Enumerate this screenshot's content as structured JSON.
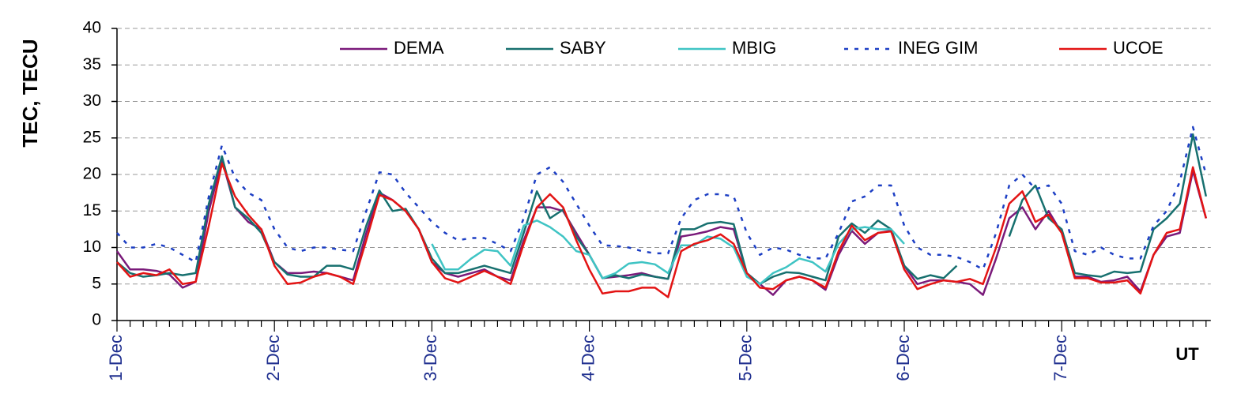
{
  "chart_data": {
    "type": "line",
    "y_label": "TEC, TECU",
    "x_label": "UT",
    "categories": [
      "1-Dec",
      null,
      null,
      null,
      null,
      null,
      null,
      null,
      null,
      null,
      null,
      null,
      "2-Dec",
      null,
      null,
      null,
      null,
      null,
      null,
      null,
      null,
      null,
      null,
      null,
      "3-Dec",
      null,
      null,
      null,
      null,
      null,
      null,
      null,
      null,
      null,
      null,
      null,
      "4-Dec",
      null,
      null,
      null,
      null,
      null,
      null,
      null,
      null,
      null,
      null,
      null,
      "5-Dec",
      null,
      null,
      null,
      null,
      null,
      null,
      null,
      null,
      null,
      null,
      null,
      "6-Dec",
      null,
      null,
      null,
      null,
      null,
      null,
      null,
      null,
      null,
      null,
      null,
      "7-Dec",
      null,
      null,
      null,
      null,
      null,
      null,
      null,
      null,
      null,
      null,
      null
    ],
    "series": [
      {
        "name": "DEMA",
        "color": "#7a1a7a",
        "style": "solid",
        "values": [
          9.5,
          7,
          7,
          6.8,
          6.3,
          4.5,
          5.3,
          15,
          22,
          15.5,
          13.5,
          12.5,
          8,
          6.5,
          6.5,
          6.7,
          6.5,
          6,
          5.5,
          12,
          17.5,
          16.5,
          15,
          12.5,
          8,
          6.5,
          6,
          6.5,
          7,
          6,
          5.5,
          11,
          15.5,
          15.5,
          15,
          12,
          9,
          5.8,
          6,
          6.2,
          6.5,
          6,
          5.7,
          11.5,
          11.8,
          12.2,
          12.8,
          12.5,
          6.5,
          5,
          3.5,
          5.5,
          6,
          5.5,
          4.2,
          9,
          12.3,
          10.5,
          12,
          12.3,
          7.5,
          5,
          5.5,
          5.5,
          5.3,
          5,
          3.5,
          8.5,
          14,
          15.5,
          12.5,
          15,
          12,
          6,
          6,
          5.3,
          5.5,
          6,
          4,
          9,
          11.5,
          12,
          20.5,
          14
        ]
      },
      {
        "name": "SABY",
        "color": "#17706f",
        "style": "solid",
        "values": [
          8,
          6.5,
          6,
          6.2,
          6.5,
          6.2,
          6.5,
          16,
          22.5,
          15.5,
          14,
          12,
          8,
          6.3,
          6,
          6,
          7.5,
          7.5,
          7,
          13,
          17.8,
          15,
          15.3,
          12.5,
          8.5,
          6.5,
          6.5,
          7,
          7.5,
          7,
          6.5,
          12,
          17.7,
          14,
          15.2,
          11.5,
          9,
          5.8,
          6.2,
          5.8,
          6.3,
          6,
          5.7,
          12.5,
          12.5,
          13.3,
          13.5,
          13.2,
          6.5,
          5,
          6,
          6.6,
          6.5,
          6,
          5.5,
          11.5,
          13.3,
          12,
          13.7,
          12.5,
          7.5,
          5.7,
          6.2,
          5.8,
          7.5,
          null,
          null,
          null,
          11.5,
          16.5,
          18.5,
          14,
          12.5,
          6.5,
          6.2,
          6,
          6.7,
          6.5,
          6.7,
          12.5,
          14,
          16,
          25.5,
          17
        ]
      },
      {
        "name": "MBIG",
        "color": "#3fc4c4",
        "style": "solid",
        "values": [
          null,
          null,
          null,
          null,
          null,
          null,
          null,
          null,
          null,
          null,
          null,
          null,
          null,
          null,
          null,
          null,
          null,
          null,
          null,
          null,
          null,
          null,
          null,
          null,
          10.5,
          7,
          7,
          8.5,
          9.7,
          9.5,
          7.5,
          13,
          13.7,
          12.8,
          11.5,
          9.5,
          9,
          5.8,
          6.5,
          7.8,
          8,
          7.7,
          6.5,
          10.3,
          10.3,
          11.5,
          11.2,
          10,
          6,
          5,
          6.5,
          7.3,
          8.5,
          8,
          6.7,
          10.5,
          12.5,
          12.8,
          12.5,
          12.5,
          10.5,
          null,
          null,
          null,
          null,
          null,
          null,
          null,
          null,
          null,
          null,
          null,
          null,
          null,
          null,
          null,
          null,
          null,
          null,
          null,
          null,
          null,
          null,
          null
        ]
      },
      {
        "name": "INEG GIM",
        "color": "#1d3fc4",
        "style": "dotted",
        "values": [
          12,
          10,
          10,
          10.5,
          10,
          9,
          8,
          17,
          24,
          19.5,
          17.5,
          16.5,
          12.5,
          10,
          9.5,
          10,
          10,
          9.7,
          9.5,
          15,
          20.3,
          20,
          17.5,
          15.5,
          13.5,
          12,
          11,
          11.3,
          11.3,
          10.5,
          9.5,
          14,
          20,
          21,
          19,
          16,
          13,
          10.3,
          10.2,
          10,
          9.5,
          9.2,
          9.2,
          14,
          16.5,
          17.3,
          17.3,
          17,
          12,
          9,
          10,
          9.7,
          9,
          8.5,
          8.5,
          12,
          16.3,
          17,
          18.5,
          18.5,
          13,
          10,
          9,
          9,
          8.7,
          8,
          7,
          12,
          18.5,
          20,
          18,
          18.5,
          16,
          9.5,
          9,
          10,
          9,
          8.5,
          8.5,
          13,
          15,
          19,
          26.5,
          20
        ]
      },
      {
        "name": "UCOE",
        "color": "#e31414",
        "style": "solid",
        "values": [
          8,
          6,
          6.5,
          6.2,
          7,
          5,
          5.3,
          13,
          21.5,
          17,
          14.5,
          12.5,
          7.5,
          5,
          5.2,
          6,
          6.5,
          6,
          5,
          11,
          17.2,
          16.5,
          15,
          12.5,
          8,
          5.8,
          5.2,
          6,
          6.8,
          6,
          5,
          10.5,
          15.5,
          17.3,
          15.5,
          11,
          7,
          3.7,
          4,
          4,
          4.5,
          4.5,
          3.2,
          9.5,
          10.5,
          11,
          11.8,
          10.5,
          6.5,
          4.5,
          4.3,
          5.5,
          6,
          5.5,
          4.5,
          9.5,
          13,
          11,
          12,
          12.2,
          7,
          4.3,
          5,
          5.5,
          5.3,
          5.7,
          5,
          10,
          16,
          17.7,
          13.5,
          14.5,
          12,
          5.8,
          5.8,
          5.2,
          5.2,
          5.5,
          3.7,
          9,
          12,
          12.5,
          21,
          14
        ]
      }
    ],
    "ylim": [
      0,
      40
    ],
    "yticks": [
      0,
      5,
      10,
      15,
      20,
      25,
      30,
      35,
      40
    ],
    "grid": true,
    "legend": "top"
  }
}
